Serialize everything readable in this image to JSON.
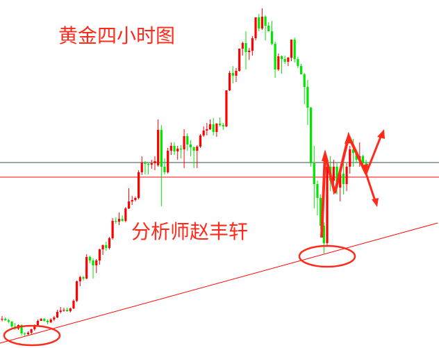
{
  "chart_data": {
    "type": "candlestick",
    "title": "黄金四小时图",
    "annotation_author": "分析师赵丰轩",
    "ylim": [
      0,
      100
    ],
    "grid": false,
    "up_color": "#ff0000",
    "down_color": "#00e600",
    "ohlc": [
      [
        8,
        9,
        7.5,
        8.2
      ],
      [
        8.2,
        8.6,
        7.6,
        7.8
      ],
      [
        7.8,
        8.2,
        7,
        7.4
      ],
      [
        7.4,
        7.6,
        5.6,
        6
      ],
      [
        6,
        7,
        5,
        5.4
      ],
      [
        5.4,
        6.6,
        5,
        6.4
      ],
      [
        6.4,
        6.6,
        3.4,
        4
      ],
      [
        4,
        4.4,
        3.2,
        3.8
      ],
      [
        3.8,
        4.6,
        3.4,
        4.2
      ],
      [
        4.2,
        5.4,
        3.8,
        5.2
      ],
      [
        5.2,
        6.6,
        4.8,
        6.4
      ],
      [
        6.4,
        8,
        6.2,
        7.6
      ],
      [
        7.6,
        8.4,
        7.6,
        8.2
      ],
      [
        8.2,
        8.4,
        7.4,
        7.6
      ],
      [
        7.6,
        8,
        6.6,
        7.2
      ],
      [
        7.2,
        8.4,
        7,
        8
      ],
      [
        8,
        9,
        7.6,
        8.6
      ],
      [
        8.6,
        10.8,
        8.4,
        10.2
      ],
      [
        10.2,
        11.6,
        9.8,
        10.6
      ],
      [
        10.6,
        11.4,
        10.2,
        10.8
      ],
      [
        10.8,
        11.4,
        10.2,
        10.4
      ],
      [
        10.4,
        11.4,
        10,
        11.2
      ],
      [
        11.2,
        13.8,
        11,
        13.4
      ],
      [
        13.4,
        19.2,
        13,
        19
      ],
      [
        19,
        20.6,
        17.6,
        20.2
      ],
      [
        20.2,
        20.6,
        19.2,
        19.8
      ],
      [
        19.8,
        26.8,
        19.6,
        26
      ],
      [
        26,
        26.4,
        24.2,
        25
      ],
      [
        25,
        25.6,
        19.8,
        23.6
      ],
      [
        23.6,
        25.4,
        21.4,
        25
      ],
      [
        25,
        28.4,
        23.8,
        28.2
      ],
      [
        28.2,
        29.6,
        26.6,
        29.4
      ],
      [
        29.4,
        30.4,
        27.8,
        28.6
      ],
      [
        28.6,
        31.8,
        28.2,
        31.4
      ],
      [
        31.4,
        37.2,
        31,
        36.4
      ],
      [
        36.4,
        37.4,
        35.6,
        36.2
      ],
      [
        36.2,
        38.8,
        35.2,
        37
      ],
      [
        37,
        38,
        36.2,
        36.4
      ],
      [
        36.4,
        40.4,
        36,
        40
      ],
      [
        40,
        45.8,
        39.8,
        42
      ],
      [
        42,
        43.6,
        41,
        42.4
      ],
      [
        42.4,
        43.4,
        42,
        43
      ],
      [
        43,
        51,
        42.6,
        50.4
      ],
      [
        50.4,
        55,
        49.6,
        53.2
      ],
      [
        53.2,
        53.6,
        49.8,
        52.8
      ],
      [
        52.8,
        53,
        49.8,
        52.6
      ],
      [
        52.6,
        54,
        51.4,
        53
      ],
      [
        53,
        55,
        51,
        53.6
      ],
      [
        52.4,
        65.6,
        52,
        62.6
      ],
      [
        62.6,
        64,
        40.6,
        52
      ],
      [
        52,
        54.4,
        49.8,
        50.4
      ],
      [
        50.4,
        57.4,
        50,
        56.6
      ],
      [
        56.6,
        59,
        55.4,
        58
      ],
      [
        58,
        59,
        55.4,
        56.4
      ],
      [
        56.4,
        58,
        54,
        57.2
      ],
      [
        57.2,
        58.2,
        54.4,
        57
      ],
      [
        57,
        62.8,
        51.6,
        60.8
      ],
      [
        60.8,
        61.6,
        56.6,
        58.4
      ],
      [
        58.4,
        59.6,
        55,
        57.6
      ],
      [
        57.6,
        57.8,
        51.6,
        56.6
      ],
      [
        56.6,
        58.2,
        51.6,
        57.8
      ],
      [
        57.8,
        61.4,
        57.4,
        61
      ],
      [
        61,
        63.6,
        60.6,
        62.4
      ],
      [
        62.4,
        64.6,
        61,
        62.8
      ],
      [
        62.8,
        65.6,
        62.6,
        64.2
      ],
      [
        64.2,
        66,
        61,
        62
      ],
      [
        62,
        64.6,
        60.6,
        64.4
      ],
      [
        64.4,
        66.2,
        63.6,
        64
      ],
      [
        64,
        64.6,
        62.6,
        63.6
      ],
      [
        63.6,
        74,
        63.4,
        74
      ],
      [
        74,
        79.6,
        73.8,
        79
      ],
      [
        79,
        81,
        76,
        78.2
      ],
      [
        78.2,
        80.4,
        76.4,
        79.6
      ],
      [
        79.6,
        86,
        79.4,
        86
      ],
      [
        86,
        88,
        84,
        87.6
      ],
      [
        87.6,
        91,
        80,
        85
      ],
      [
        85,
        86.2,
        82.8,
        85.4
      ],
      [
        85.4,
        89.6,
        84,
        89
      ],
      [
        89,
        95,
        88.4,
        95
      ],
      [
        95,
        96,
        91,
        91.8
      ],
      [
        91.8,
        97.6,
        91.4,
        95.2
      ],
      [
        95.2,
        95.6,
        88.4,
        92.6
      ],
      [
        92.6,
        93.6,
        91,
        91
      ],
      [
        91,
        94,
        87,
        87.4
      ],
      [
        87.4,
        88,
        77.6,
        80
      ],
      [
        80,
        84.6,
        79.6,
        83.8
      ],
      [
        83.8,
        84,
        78.8,
        83
      ],
      [
        83,
        84,
        81.6,
        82.2
      ],
      [
        82.2,
        83.6,
        81,
        83.4
      ],
      [
        83.4,
        88.6,
        82.4,
        88.6
      ],
      [
        88.6,
        89.2,
        82,
        83
      ],
      [
        83,
        83.6,
        80.4,
        81
      ],
      [
        81,
        81.6,
        79,
        78.6
      ],
      [
        78.6,
        79,
        70,
        75
      ],
      [
        75,
        77,
        64,
        69
      ],
      [
        69,
        69.2,
        52,
        53
      ],
      [
        53,
        58,
        40,
        47
      ],
      [
        47,
        48,
        38,
        43
      ],
      [
        43,
        44,
        34,
        35
      ],
      [
        35,
        36,
        27,
        30
      ],
      [
        30,
        53,
        29,
        52
      ],
      [
        52,
        55,
        45,
        48
      ],
      [
        48,
        54,
        44,
        52
      ],
      [
        52,
        53,
        44,
        46
      ],
      [
        46,
        51,
        42,
        50
      ],
      [
        50,
        54,
        44,
        47
      ],
      [
        47,
        53,
        45,
        52
      ],
      [
        52,
        58,
        50,
        57
      ],
      [
        57,
        60,
        52,
        56
      ],
      [
        56,
        57,
        53,
        54
      ],
      [
        54,
        59,
        52,
        55
      ],
      [
        55,
        55.4,
        52,
        53
      ],
      [
        53,
        54,
        51,
        52.6
      ]
    ],
    "horizontal_lines": [
      {
        "value": 53.2,
        "color": "#2f4f4f"
      },
      {
        "value": 49,
        "color": "#ff0000"
      }
    ],
    "trendline": {
      "color": "#ff0000",
      "from": {
        "index": 0,
        "value": 1.4
      },
      "to": {
        "index": 134,
        "value": 35.8
      }
    },
    "annotation_color": "#ff2a1a"
  }
}
